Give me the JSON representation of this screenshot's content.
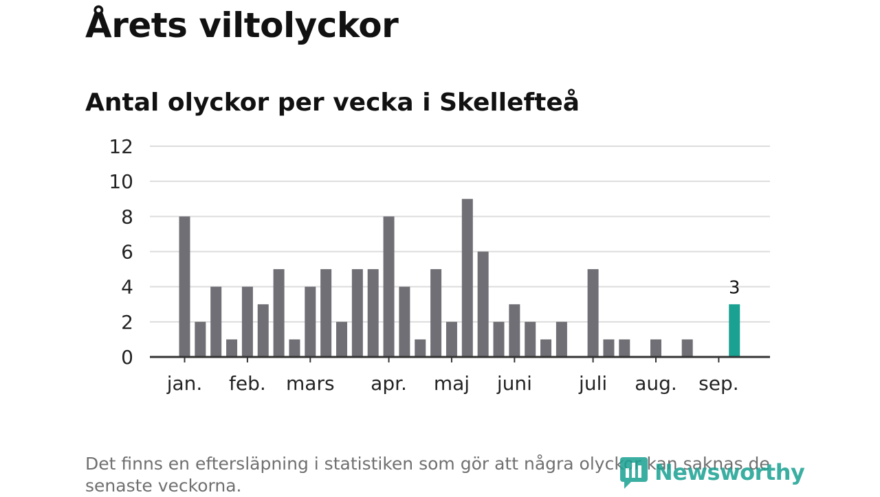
{
  "title": "Årets viltolyckor",
  "subtitle": "Antal olyckor per vecka i Skellefteå",
  "footnote": "Det finns en eftersläpning i statistiken som gör att några olyckor kan saknas de senaste veckorna.",
  "logo": {
    "text": "Newsworthy",
    "color": "#1aa192"
  },
  "colors": {
    "bar": "#706f75",
    "highlight": "#1aa192",
    "grid": "#dcdcdc",
    "axis": "#333333"
  },
  "chart_data": {
    "type": "bar",
    "ylim": [
      0,
      12
    ],
    "y_ticks": [
      0,
      2,
      4,
      6,
      8,
      10,
      12
    ],
    "grid": true,
    "x_ticks": [
      {
        "label": "jan.",
        "week": 1
      },
      {
        "label": "feb.",
        "week": 5
      },
      {
        "label": "mars",
        "week": 9
      },
      {
        "label": "apr.",
        "week": 14
      },
      {
        "label": "maj",
        "week": 18
      },
      {
        "label": "juni",
        "week": 22
      },
      {
        "label": "juli",
        "week": 27
      },
      {
        "label": "aug.",
        "week": 31
      },
      {
        "label": "sep.",
        "week": 35
      }
    ],
    "weeks": [
      1,
      2,
      3,
      4,
      5,
      6,
      7,
      8,
      9,
      10,
      11,
      12,
      13,
      14,
      15,
      16,
      17,
      18,
      19,
      20,
      21,
      22,
      23,
      24,
      25,
      26,
      27,
      28,
      29,
      30,
      31,
      32,
      33,
      34,
      35,
      36
    ],
    "values": [
      8,
      2,
      4,
      1,
      4,
      3,
      5,
      1,
      4,
      5,
      2,
      5,
      5,
      8,
      4,
      1,
      5,
      2,
      9,
      6,
      2,
      3,
      2,
      1,
      2,
      0,
      5,
      1,
      1,
      0,
      1,
      0,
      1,
      0,
      0,
      3
    ],
    "highlight_index": 35,
    "highlight_label": "3"
  }
}
